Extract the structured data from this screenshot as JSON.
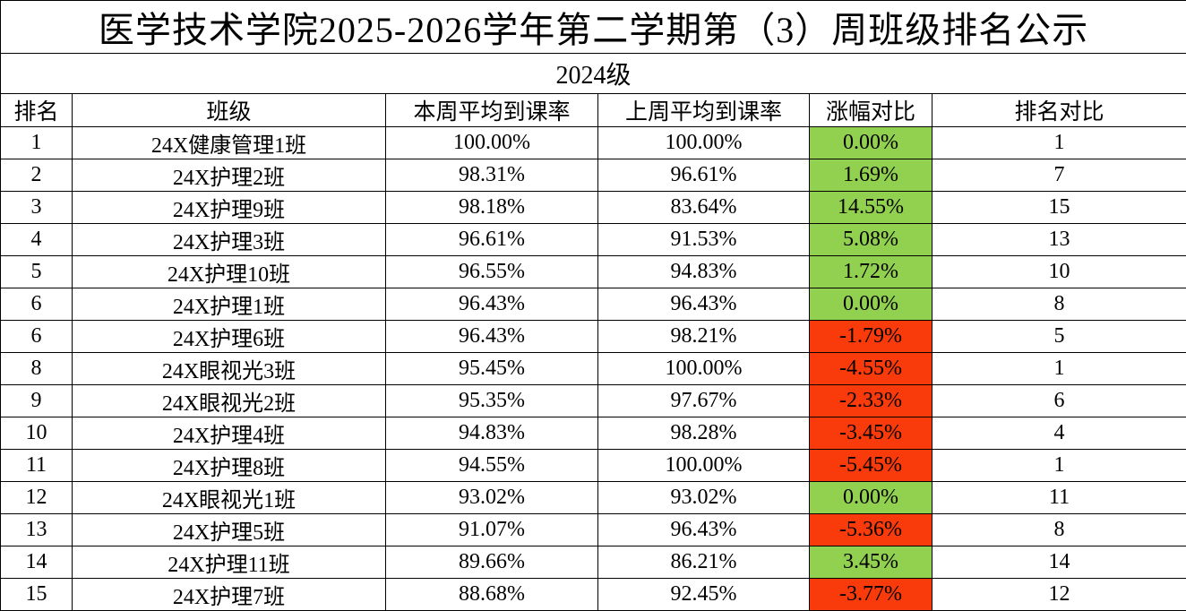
{
  "title": "医学技术学院2025-2026学年第二学期第（3）周班级排名公示",
  "subtitle": "2024级",
  "colors": {
    "increase": "#92d050",
    "decrease": "#f93a0a"
  },
  "headers": [
    "排名",
    "班级",
    "本周平均到课率",
    "上周平均到课率",
    "涨幅对比",
    "排名对比"
  ],
  "rows": [
    [
      "1",
      "24X健康管理1班",
      "100.00%",
      "100.00%",
      "0.00%",
      "1"
    ],
    [
      "2",
      "24X护理2班",
      "98.31%",
      "96.61%",
      "1.69%",
      "7"
    ],
    [
      "3",
      "24X护理9班",
      "98.18%",
      "83.64%",
      "14.55%",
      "15"
    ],
    [
      "4",
      "24X护理3班",
      "96.61%",
      "91.53%",
      "5.08%",
      "13"
    ],
    [
      "5",
      "24X护理10班",
      "96.55%",
      "94.83%",
      "1.72%",
      "10"
    ],
    [
      "6",
      "24X护理1班",
      "96.43%",
      "96.43%",
      "0.00%",
      "8"
    ],
    [
      "6",
      "24X护理6班",
      "96.43%",
      "98.21%",
      "-1.79%",
      "5"
    ],
    [
      "8",
      "24X眼视光3班",
      "95.45%",
      "100.00%",
      "-4.55%",
      "1"
    ],
    [
      "9",
      "24X眼视光2班",
      "95.35%",
      "97.67%",
      "-2.33%",
      "6"
    ],
    [
      "10",
      "24X护理4班",
      "94.83%",
      "98.28%",
      "-3.45%",
      "4"
    ],
    [
      "11",
      "24X护理8班",
      "94.55%",
      "100.00%",
      "-5.45%",
      "1"
    ],
    [
      "12",
      "24X眼视光1班",
      "93.02%",
      "93.02%",
      "0.00%",
      "11"
    ],
    [
      "13",
      "24X护理5班",
      "91.07%",
      "96.43%",
      "-5.36%",
      "8"
    ],
    [
      "14",
      "24X护理11班",
      "89.66%",
      "86.21%",
      "3.45%",
      "14"
    ],
    [
      "15",
      "24X护理7班",
      "88.68%",
      "92.45%",
      "-3.77%",
      "12"
    ]
  ]
}
